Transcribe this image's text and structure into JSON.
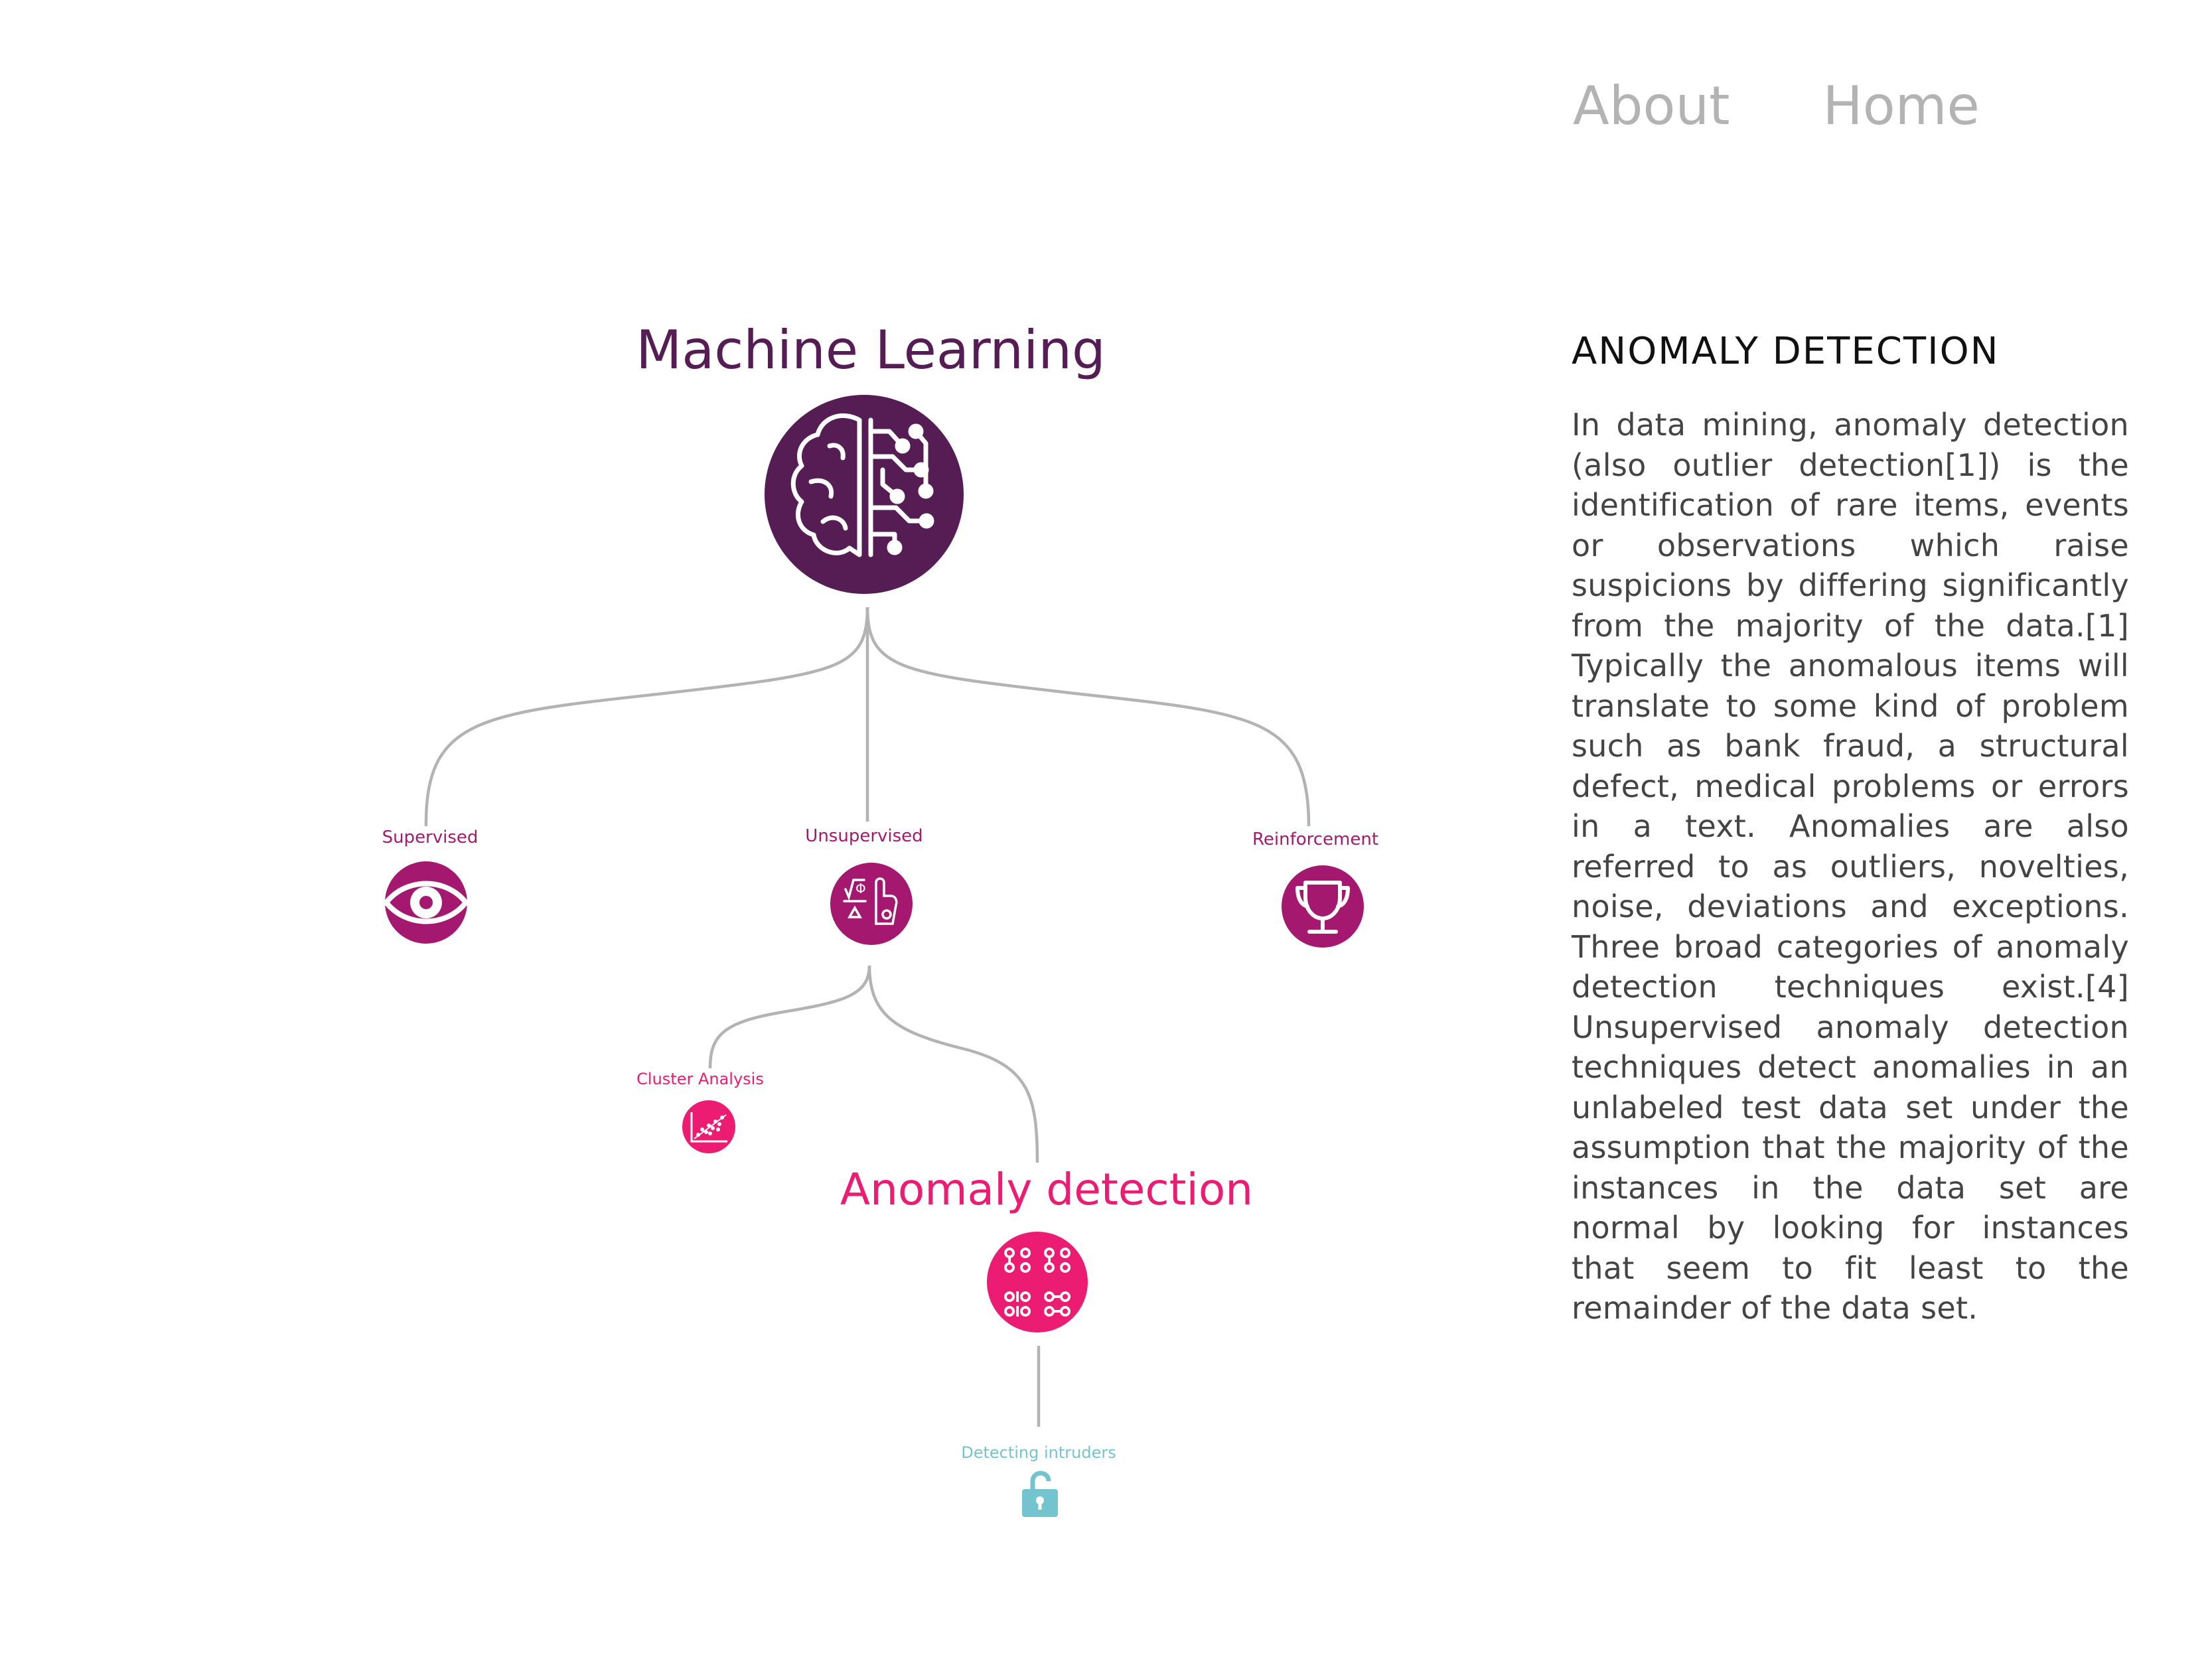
{
  "nav": {
    "about": "About",
    "home": "Home"
  },
  "colors": {
    "root": "#561c54",
    "branch": "#a4196f",
    "highlight": "#ec1c72",
    "leaf": "#74c4cf",
    "line": "#b3b3b3",
    "nav_text": "#b3b3b3"
  },
  "tree": {
    "root": {
      "title": "Machine Learning",
      "icon": "brain-circuit-icon"
    },
    "supervised": {
      "label": "Supervised",
      "icon": "eye-icon"
    },
    "unsupervised": {
      "label": "Unsupervised",
      "icon": "math-hand-icon"
    },
    "reinforcement": {
      "label": "Reinforcement",
      "icon": "trophy-icon"
    },
    "cluster": {
      "label": "Cluster Analysis",
      "icon": "scatter-plot-icon"
    },
    "anomaly": {
      "title": "Anomaly detection",
      "icon": "binary-pattern-icon"
    },
    "intruders": {
      "label": "Detecting intruders",
      "icon": "open-lock-icon"
    }
  },
  "panel": {
    "heading": "ANOMALY DETECTION",
    "body": "In data mining, anomaly detection (also outlier detection[1]) is the identification of rare items, events or observations which raise suspicions by differing significantly from the majority of the data.[1] Typically the anomalous items will translate to some kind of problem such as bank fraud, a structural defect, medical problems or errors in a text. Anomalies are also referred to as outliers, novelties, noise, deviations and exceptions. Three broad categories of anomaly detection techniques exist.[4] Unsupervised anomaly detection techniques detect anomalies in an unlabeled test data set under the assumption that the majority of the instances in the data set are normal by looking for instances that seem to fit least to the remainder of the data set."
  }
}
